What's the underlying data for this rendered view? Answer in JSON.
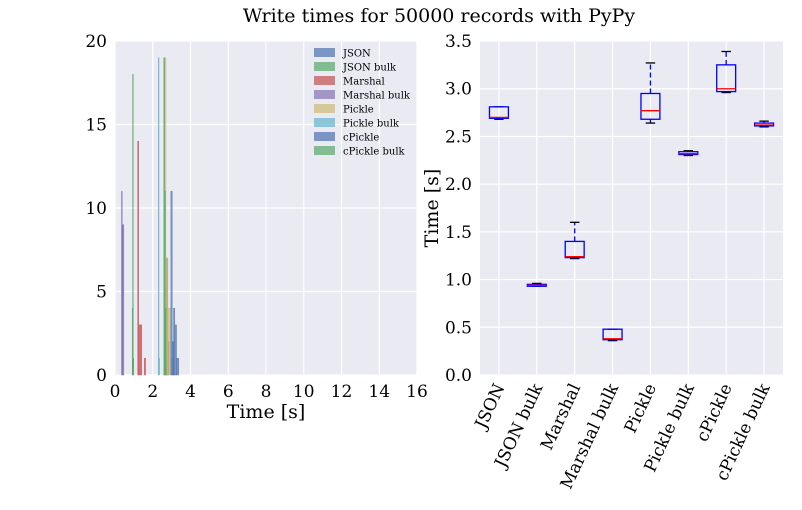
{
  "figure": {
    "title": "Write times for 50000 records with PyPy"
  },
  "colors": {
    "plot_bg": "#eaeaf2",
    "grid": "#ffffff",
    "box": "#0000ff",
    "median": "#ff0000",
    "cap": "#000000"
  },
  "chart_data": [
    {
      "type": "bar",
      "subtype": "histogram",
      "title": "",
      "xlabel": "Time [s]",
      "ylabel": "",
      "xlim": [
        0,
        16
      ],
      "ylim": [
        0,
        20
      ],
      "xticks": [
        "0",
        "2",
        "4",
        "6",
        "8",
        "10",
        "12",
        "14",
        "16"
      ],
      "yticks": [
        "0",
        "5",
        "10",
        "15",
        "20"
      ],
      "grid": true,
      "legend": "top-right",
      "series": [
        {
          "name": "JSON",
          "color": "#4c72b0",
          "bins": [
            [
              2.68,
              2.74,
              1
            ],
            [
              2.74,
              2.8,
              7
            ],
            [
              2.8,
              2.86,
              2
            ]
          ]
        },
        {
          "name": "JSON bulk",
          "color": "#55a868",
          "bins": [
            [
              0.91,
              0.93,
              4
            ],
            [
              0.93,
              0.95,
              18
            ],
            [
              0.95,
              0.97,
              1
            ]
          ]
        },
        {
          "name": "Marshal",
          "color": "#c44e52",
          "bins": [
            [
              1.2,
              1.26,
              14
            ],
            [
              1.26,
              1.32,
              3
            ],
            [
              1.32,
              1.42,
              3
            ],
            [
              1.55,
              1.62,
              1
            ]
          ]
        },
        {
          "name": "Marshal bulk",
          "color": "#8172b2",
          "bins": [
            [
              0.34,
              0.38,
              11
            ],
            [
              0.38,
              0.42,
              9
            ],
            [
              0.42,
              0.47,
              9
            ]
          ]
        },
        {
          "name": "Pickle",
          "color": "#ccb974",
          "bins": [
            [
              2.62,
              2.7,
              19
            ],
            [
              2.7,
              2.8,
              7
            ],
            [
              2.8,
              2.95,
              4
            ],
            [
              2.95,
              3.1,
              1
            ]
          ]
        },
        {
          "name": "Pickle bulk",
          "color": "#64b5cd",
          "bins": [
            [
              2.29,
              2.32,
              19
            ],
            [
              2.32,
              2.35,
              1
            ]
          ]
        },
        {
          "name": "cPickle",
          "color": "#4c72b0",
          "bins": [
            [
              2.96,
              3.03,
              11
            ],
            [
              3.03,
              3.1,
              2
            ],
            [
              3.1,
              3.17,
              4
            ],
            [
              3.17,
              3.26,
              3
            ],
            [
              3.26,
              3.38,
              1
            ]
          ]
        },
        {
          "name": "cPickle bulk",
          "color": "#55a868",
          "bins": [
            [
              2.58,
              2.63,
              19
            ],
            [
              2.63,
              2.66,
              11
            ],
            [
              2.66,
              2.7,
              4
            ]
          ]
        }
      ]
    },
    {
      "type": "box",
      "title": "",
      "xlabel": "",
      "ylabel": "Time [s]",
      "ylim": [
        0,
        3.5
      ],
      "yticks": [
        "0.0",
        "0.5",
        "1.0",
        "1.5",
        "2.0",
        "2.5",
        "3.0",
        "3.5"
      ],
      "grid": true,
      "categories": [
        "JSON",
        "JSON bulk",
        "Marshal",
        "Marshal bulk",
        "Pickle",
        "Pickle bulk",
        "cPickle",
        "cPickle bulk"
      ],
      "boxes": [
        {
          "whislo": 2.68,
          "q1": 2.69,
          "med": 2.7,
          "q3": 2.81,
          "whishi": 2.81
        },
        {
          "whislo": 0.93,
          "q1": 0.93,
          "med": 0.94,
          "q3": 0.95,
          "whishi": 0.96
        },
        {
          "whislo": 1.22,
          "q1": 1.23,
          "med": 1.24,
          "q3": 1.4,
          "whishi": 1.6
        },
        {
          "whislo": 0.36,
          "q1": 0.37,
          "med": 0.38,
          "q3": 0.48,
          "whishi": 0.48
        },
        {
          "whislo": 2.64,
          "q1": 2.68,
          "med": 2.77,
          "q3": 2.95,
          "whishi": 3.27
        },
        {
          "whislo": 2.3,
          "q1": 2.31,
          "med": 2.32,
          "q3": 2.34,
          "whishi": 2.35
        },
        {
          "whislo": 2.96,
          "q1": 2.97,
          "med": 3.0,
          "q3": 3.25,
          "whishi": 3.39
        },
        {
          "whislo": 2.6,
          "q1": 2.61,
          "med": 2.62,
          "q3": 2.64,
          "whishi": 2.66
        }
      ]
    }
  ]
}
